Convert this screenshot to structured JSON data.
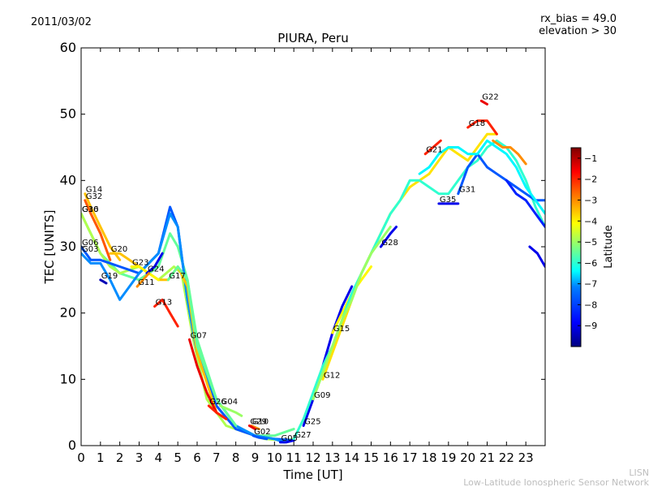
{
  "header": {
    "date": "2011/03/02",
    "rx_bias": "rx_bias = 49.0",
    "elevation": "elevation > 30"
  },
  "footer": {
    "line1": "LISN",
    "line2": "Low-Latitude Ionospheric Sensor Network"
  },
  "chart_data": {
    "type": "line",
    "title": "PIURA, Peru",
    "xlabel": "Time [UT]",
    "ylabel": "TEC [UNITS]",
    "xlim": [
      0,
      24
    ],
    "ylim": [
      0,
      60
    ],
    "xticks": [
      0,
      1,
      2,
      3,
      4,
      5,
      6,
      7,
      8,
      9,
      10,
      11,
      12,
      13,
      14,
      15,
      16,
      17,
      18,
      19,
      20,
      21,
      22,
      23
    ],
    "yticks": [
      0,
      10,
      20,
      30,
      40,
      50,
      60
    ],
    "grid": false,
    "colorbar": {
      "label": "Latitude",
      "range": [
        -10,
        -0.5
      ],
      "ticks": [
        -1,
        -2,
        -3,
        -4,
        -5,
        -6,
        -7,
        -8,
        -9
      ],
      "colormap": [
        "#00007f",
        "#0000ff",
        "#007fff",
        "#00ffff",
        "#7fff7f",
        "#ffff00",
        "#ff7f00",
        "#ff0000",
        "#7f0000"
      ]
    },
    "series": [
      {
        "name": "G14",
        "lat": -3.5,
        "x": [
          0.2,
          0.5,
          1.0,
          1.5,
          2.0
        ],
        "y": [
          38,
          36,
          33,
          30,
          28
        ]
      },
      {
        "name": "G32",
        "lat": -2.5,
        "x": [
          0.2,
          0.5,
          1.0,
          1.5
        ],
        "y": [
          37,
          35,
          32,
          28
        ]
      },
      {
        "name": "G16",
        "lat": -5.5,
        "x": [
          0.0,
          0.5,
          1.0,
          2.0,
          3.0,
          4.0,
          4.6,
          5.0,
          5.5,
          6.0,
          7.0,
          8.0,
          9.0,
          10.0,
          11.0
        ],
        "y": [
          35,
          32,
          29,
          26,
          25,
          27,
          32,
          30,
          25,
          16,
          7,
          3,
          1.5,
          1.5,
          2.5
        ]
      },
      {
        "name": "G30",
        "lat": -4.8,
        "x": [
          0.0,
          0.5,
          1.0,
          1.5,
          2.0,
          3.0,
          4.0,
          4.8,
          5.2,
          5.8,
          6.5,
          7.5,
          8.5,
          9.5,
          10.5,
          11.0
        ],
        "y": [
          35,
          32,
          29,
          27,
          26,
          27,
          25,
          27,
          26,
          16,
          7,
          3,
          2,
          1,
          0.8,
          1
        ]
      },
      {
        "name": "G06",
        "lat": -8.0,
        "x": [
          0.0,
          0.5,
          1.0,
          2.0,
          3.0,
          4.0,
          4.6,
          5.0,
          5.5,
          6.0,
          7.0,
          8.0,
          9.0,
          10.0,
          11.0
        ],
        "y": [
          30,
          28,
          28,
          27,
          26,
          29,
          36,
          33,
          22,
          14,
          6,
          2.5,
          1.5,
          1,
          0.8
        ]
      },
      {
        "name": "G03",
        "lat": -7.5,
        "x": [
          0.0,
          0.5,
          1.0,
          1.5,
          2.0,
          3.0,
          4.0,
          4.6,
          5.0,
          5.5,
          6.0,
          7.0,
          8.0,
          9.0,
          10.0,
          10.5
        ],
        "y": [
          29,
          27.5,
          27.5,
          25,
          22,
          26,
          29,
          35,
          33,
          22,
          14,
          7,
          3,
          1.5,
          1,
          0.5
        ]
      },
      {
        "name": "G20",
        "lat": -3.5,
        "x": [
          1.5,
          2.0,
          2.5,
          3.0,
          3.5,
          4.0,
          4.5,
          5.0,
          5.5,
          6.0,
          7.0
        ],
        "y": [
          29,
          29,
          28,
          27,
          26,
          25,
          25,
          27,
          24,
          14,
          5
        ]
      },
      {
        "name": "G19",
        "lat": -9.5,
        "x": [
          1.0,
          1.3
        ],
        "y": [
          25,
          24.5
        ]
      },
      {
        "name": "G23",
        "lat": -4.0,
        "x": [
          2.6,
          3.0,
          3.5,
          4.0
        ],
        "y": [
          27,
          27,
          26,
          25
        ]
      },
      {
        "name": "G24",
        "lat": -9.0,
        "x": [
          3.4,
          3.8,
          4.2
        ],
        "y": [
          26,
          27,
          29
        ]
      },
      {
        "name": "G11",
        "lat": -3.0,
        "x": [
          2.9,
          3.2,
          3.5
        ],
        "y": [
          24,
          25,
          26
        ]
      },
      {
        "name": "G13",
        "lat": -2.0,
        "x": [
          3.8,
          4.2,
          4.6,
          5.0
        ],
        "y": [
          21,
          22,
          20,
          18
        ]
      },
      {
        "name": "G17",
        "lat": -5.5,
        "x": [
          4.5,
          5.0,
          5.5,
          6.0,
          7.0,
          8.0
        ],
        "y": [
          25,
          27,
          25,
          15,
          7,
          3
        ]
      },
      {
        "name": "G07",
        "lat": -1.5,
        "x": [
          5.6,
          6.0,
          6.5,
          7.0
        ],
        "y": [
          16,
          12,
          8,
          5
        ]
      },
      {
        "name": "G26",
        "lat": -2.0,
        "x": [
          6.6,
          7.0,
          7.5
        ],
        "y": [
          6,
          5,
          4
        ]
      },
      {
        "name": "G04",
        "lat": -5.0,
        "x": [
          7.2,
          7.6,
          8.0,
          8.3
        ],
        "y": [
          6,
          5.5,
          5,
          4.5
        ]
      },
      {
        "name": "G10",
        "lat": -3.0,
        "x": [
          8.8,
          9.2
        ],
        "y": [
          3,
          2.5
        ]
      },
      {
        "name": "G29",
        "lat": -1.5,
        "x": [
          8.7,
          9.0
        ],
        "y": [
          3,
          2.5
        ]
      },
      {
        "name": "G02",
        "lat": -8.0,
        "x": [
          8.9,
          9.2,
          9.6
        ],
        "y": [
          1.5,
          1.2,
          1
        ]
      },
      {
        "name": "G05",
        "lat": -9.0,
        "x": [
          10.3,
          10.6,
          11.0
        ],
        "y": [
          0.5,
          0.5,
          0.8
        ]
      },
      {
        "name": "G25",
        "lat": -9.0,
        "x": [
          11.5,
          12.0,
          12.5,
          13.0,
          13.5,
          14.0
        ],
        "y": [
          3,
          7,
          12,
          17,
          21,
          24
        ]
      },
      {
        "name": "G12",
        "lat": -3.8,
        "x": [
          12.5,
          13.0,
          13.5,
          14.0,
          14.5,
          15.0,
          15.5,
          16.0,
          16.5,
          17.0,
          17.5,
          18.0,
          18.5,
          19.0,
          19.5,
          20.0,
          20.5,
          21.0,
          21.5
        ],
        "y": [
          10,
          14,
          18,
          22,
          26,
          29,
          32,
          35,
          37,
          39,
          40,
          41,
          43,
          45,
          44,
          43,
          45,
          47,
          47
        ]
      },
      {
        "name": "G15",
        "lat": -4.0,
        "x": [
          13.0,
          13.5,
          14.0,
          14.5,
          15.0
        ],
        "y": [
          17,
          20,
          23,
          25,
          27
        ]
      },
      {
        "name": "G27",
        "lat": -6.0,
        "x": [
          11.0,
          11.5,
          12.0,
          12.5,
          13.0,
          13.5,
          14.0,
          14.5,
          15.0,
          15.5,
          16.0,
          16.5,
          17.0,
          17.5,
          18.0,
          18.5,
          19.0,
          19.5,
          20.0,
          20.5,
          21.0,
          21.5,
          22.0,
          22.5,
          23.0,
          23.5,
          24.0
        ],
        "y": [
          1,
          4,
          8,
          12,
          15,
          19,
          23,
          26,
          29,
          32,
          35,
          37,
          40,
          40,
          39,
          38,
          38,
          40,
          42,
          43,
          45,
          46,
          45,
          43,
          40,
          36,
          33
        ]
      },
      {
        "name": "G09",
        "lat": -5.0,
        "x": [
          12.0,
          12.5,
          13.0,
          13.5,
          14.0,
          14.5,
          15.0,
          15.5,
          16.0
        ],
        "y": [
          7,
          11,
          15,
          19,
          22,
          26,
          29,
          31,
          33
        ]
      },
      {
        "name": "G28",
        "lat": -9.0,
        "x": [
          15.5,
          16.0,
          16.3
        ],
        "y": [
          30,
          32,
          33
        ]
      },
      {
        "name": "G21",
        "lat": -2.0,
        "x": [
          17.8,
          18.2,
          18.6
        ],
        "y": [
          44,
          45,
          46
        ]
      },
      {
        "name": "G35",
        "lat": -9.0,
        "x": [
          18.5,
          19.0,
          19.5
        ],
        "y": [
          36.5,
          36.5,
          36.5
        ]
      },
      {
        "name": "G31",
        "lat": -8.0,
        "x": [
          19.5,
          20.0,
          20.5,
          21.0,
          21.5,
          22.0,
          22.5,
          23.0,
          23.5,
          24.0
        ],
        "y": [
          38,
          42,
          44,
          42,
          41,
          40,
          39,
          38,
          37,
          37
        ]
      },
      {
        "name": "G18",
        "lat": -2.0,
        "x": [
          20.0,
          20.5,
          21.0,
          21.5
        ],
        "y": [
          48,
          49,
          49,
          47
        ]
      },
      {
        "name": "G22",
        "lat": -1.5,
        "x": [
          20.7,
          21.0
        ],
        "y": [
          52,
          51.5
        ]
      },
      {
        "name": "",
        "lat": -3.0,
        "x": [
          21.3,
          21.8,
          22.2,
          22.6,
          23.0
        ],
        "y": [
          46,
          45,
          45,
          44,
          42.5
        ]
      },
      {
        "name": "",
        "lat": -8.5,
        "x": [
          22.0,
          22.5,
          23.0,
          23.5,
          24.0
        ],
        "y": [
          40,
          38,
          37,
          35,
          33
        ]
      },
      {
        "name": "",
        "lat": -9.0,
        "x": [
          23.2,
          23.6,
          24.0
        ],
        "y": [
          30,
          29,
          27
        ]
      },
      {
        "name": "",
        "lat": -6.5,
        "x": [
          17.5,
          18.0,
          18.5,
          19.0,
          19.5,
          20.0,
          20.5,
          21.0,
          21.5,
          22.0,
          22.5,
          23.0,
          23.5,
          24.0
        ],
        "y": [
          41,
          42,
          44,
          45,
          45,
          44,
          44,
          46,
          45,
          44,
          42,
          39,
          37,
          35
        ]
      }
    ]
  }
}
